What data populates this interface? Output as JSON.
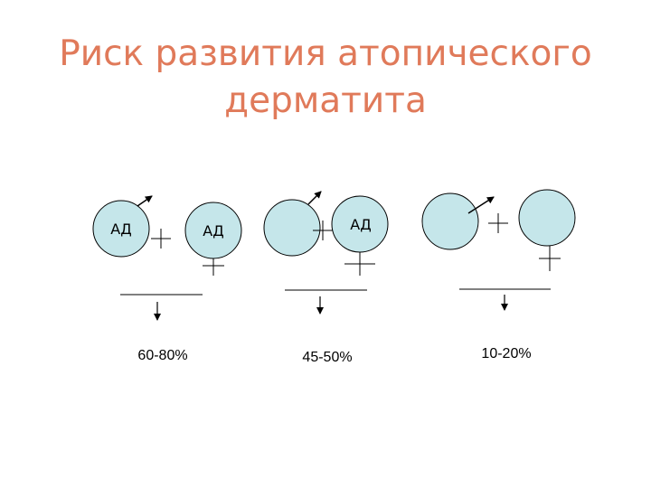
{
  "title": {
    "line1": "Риск развития атопического",
    "line2": "дерматита"
  },
  "colors": {
    "title": "#e07a5a",
    "circle_fill": "#c5e6ea",
    "stroke": "#000000"
  },
  "groups": [
    {
      "father_label": "АД",
      "mother_label": "АД",
      "risk": "60-80%"
    },
    {
      "father_label": "",
      "mother_label": "АД",
      "risk": "45-50%"
    },
    {
      "father_label": "",
      "mother_label": "",
      "risk": "10-20%"
    }
  ],
  "icons": {
    "father": "male-symbol-icon",
    "mother": "female-symbol-icon",
    "arrow": "arrow-down-icon"
  }
}
